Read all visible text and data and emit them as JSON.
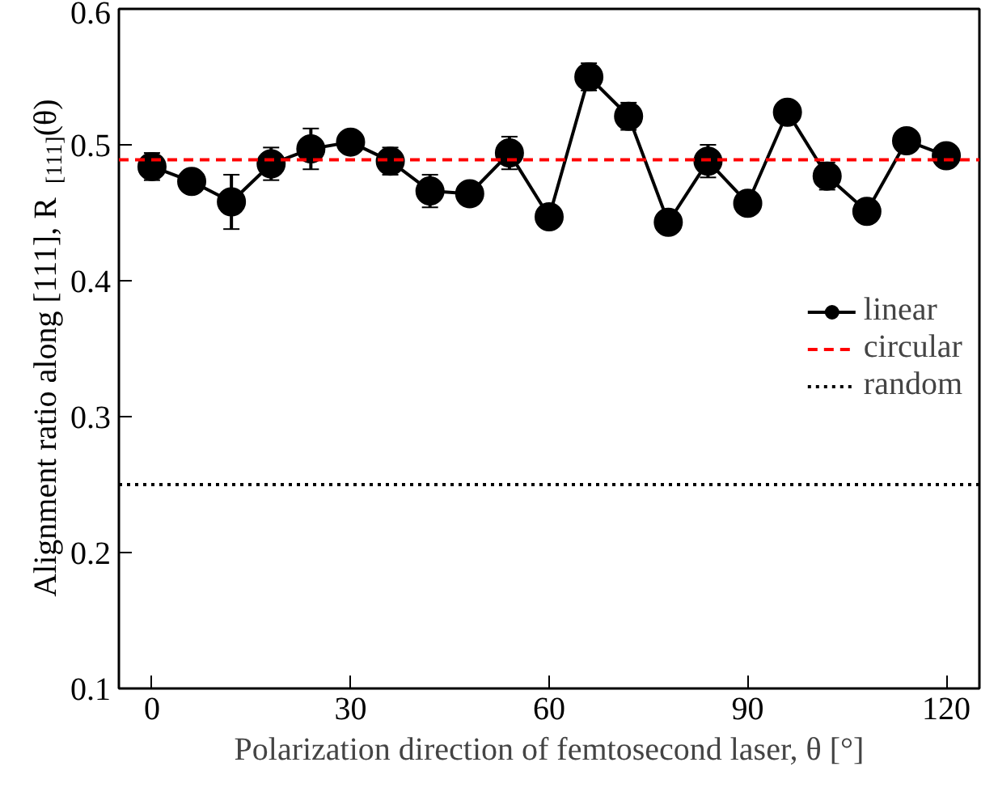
{
  "chart_data": {
    "type": "line",
    "xlabel": "Polarization direction of femtosecond laser, θ [°]",
    "ylabel": "Alignment ratio along [111], R$_{[111]}$(θ)",
    "x": [
      0,
      6,
      12,
      18,
      24,
      30,
      36,
      42,
      48,
      54,
      60,
      66,
      72,
      78,
      84,
      90,
      96,
      102,
      108,
      114,
      120
    ],
    "series": [
      {
        "name": "linear",
        "color": "#000000",
        "marker": "circle",
        "line_style": "solid",
        "values": [
          0.484,
          0.473,
          0.458,
          0.486,
          0.497,
          0.502,
          0.488,
          0.466,
          0.464,
          0.494,
          0.447,
          0.55,
          0.521,
          0.443,
          0.488,
          0.457,
          0.524,
          0.477,
          0.451,
          0.503,
          0.492
        ],
        "errors": [
          0.01,
          0.008,
          0.02,
          0.012,
          0.015,
          0.005,
          0.01,
          0.012,
          0.004,
          0.012,
          0.004,
          0.01,
          0.01,
          0.005,
          0.012,
          0.008,
          0.006,
          0.01,
          0.005,
          0.005,
          0.005
        ]
      }
    ],
    "ref_lines": [
      {
        "axis": "y",
        "value": 0.489,
        "label": "circular",
        "color": "#ff0000",
        "line_style": "dashed"
      },
      {
        "axis": "y",
        "value": 0.25,
        "label": "random",
        "color": "#000000",
        "line_style": "dotted"
      }
    ],
    "xlim": [
      -5,
      125
    ],
    "xticks": [
      0,
      30,
      60,
      90,
      120
    ],
    "ylim": [
      0.1,
      0.6
    ],
    "yticks": [
      0.1,
      0.2,
      0.3,
      0.4,
      0.5,
      0.6
    ],
    "grid": false,
    "legend": "right"
  }
}
